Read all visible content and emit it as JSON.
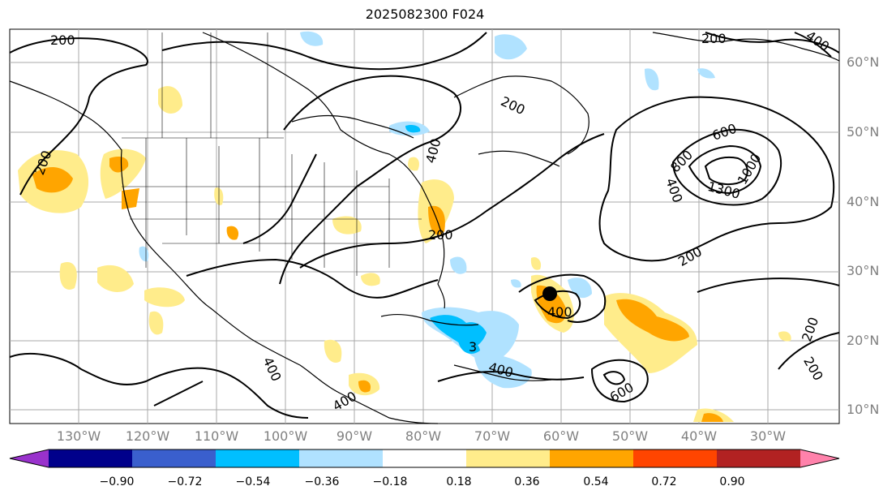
{
  "title": "2025082300 F024",
  "map": {
    "lon_labels": [
      "130°W",
      "120°W",
      "110°W",
      "100°W",
      "90°W",
      "80°W",
      "70°W",
      "60°W",
      "50°W",
      "40°W",
      "30°W"
    ],
    "lat_labels": [
      "60°N",
      "50°N",
      "40°N",
      "30°N",
      "20°N",
      "10°N"
    ],
    "contour_labels": [
      "200",
      "200",
      "400",
      "200",
      "600",
      "800",
      "1000",
      "1300",
      "400",
      "200",
      "200",
      "200",
      "400",
      "400",
      "3",
      "400",
      "400",
      "600",
      "400",
      "200",
      "200"
    ]
  },
  "colorbar": {
    "ticks": [
      "−0.90",
      "−0.72",
      "−0.54",
      "−0.36",
      "−0.18",
      "0.18",
      "0.36",
      "0.54",
      "0.72",
      "0.90"
    ],
    "colors": [
      "#9932cc",
      "#00008b",
      "#3a5fcd",
      "#00bfff",
      "#b0e2ff",
      "#ffffff",
      "#ffec8b",
      "#ffa500",
      "#ff4500",
      "#b22222",
      "#ff82ab"
    ]
  },
  "colors": {
    "land_line": "#000000",
    "grid": "#a0a0a0",
    "label_gray": "#808080"
  }
}
